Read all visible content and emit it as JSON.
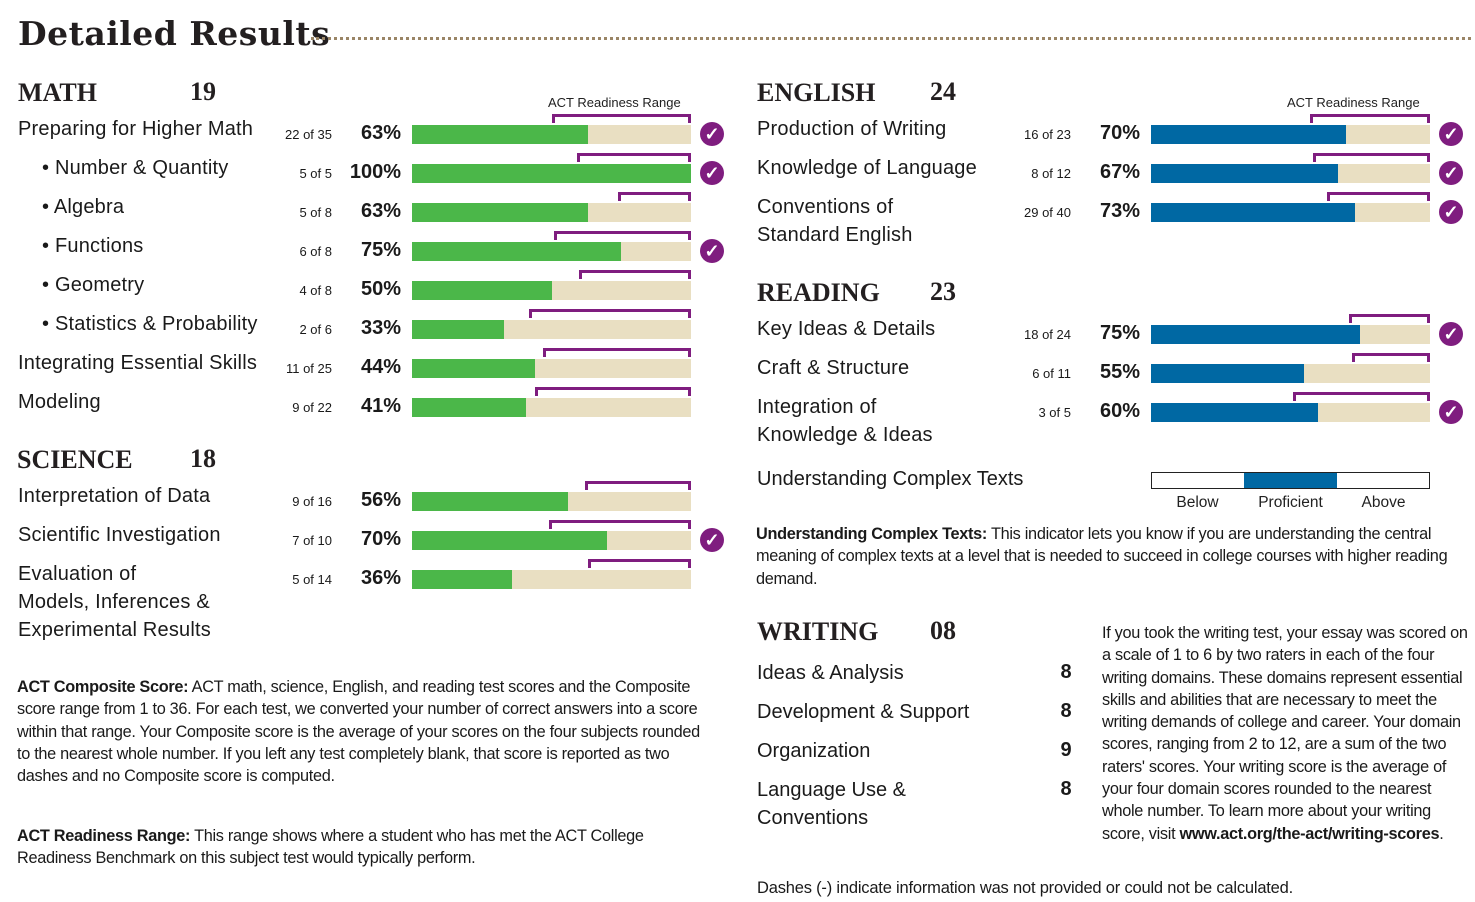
{
  "title": "Detailed Results",
  "readiness_label": "ACT Readiness Range",
  "colors": {
    "math_science_bar": "#4bb749",
    "english_reading_bar": "#0068a3",
    "track": "#e9dfc2",
    "readiness_bracket": "#7f1d7f",
    "check": "#7f1d7f",
    "divider": "#9a8566"
  },
  "math": {
    "name": "MATH",
    "score": "19",
    "rows": [
      {
        "label": "Preparing for Higher Math",
        "count": "22 of 35",
        "percent": "63%",
        "value": 63,
        "readiness_start": 50,
        "met": true,
        "indent": false
      },
      {
        "label": "• Number & Quantity",
        "count": "5 of 5",
        "percent": "100%",
        "value": 100,
        "readiness_start": 59,
        "met": true,
        "indent": true
      },
      {
        "label": "• Algebra",
        "count": "5 of 8",
        "percent": "63%",
        "value": 63,
        "readiness_start": 74,
        "met": false,
        "indent": true
      },
      {
        "label": "• Functions",
        "count": "6 of 8",
        "percent": "75%",
        "value": 75,
        "readiness_start": 51,
        "met": true,
        "indent": true
      },
      {
        "label": "• Geometry",
        "count": "4 of 8",
        "percent": "50%",
        "value": 50,
        "readiness_start": 60,
        "met": false,
        "indent": true
      },
      {
        "label": "• Statistics & Probability",
        "count": "2 of 6",
        "percent": "33%",
        "value": 33,
        "readiness_start": 42,
        "met": false,
        "indent": true
      },
      {
        "label": "Integrating Essential Skills",
        "count": "11 of 25",
        "percent": "44%",
        "value": 44,
        "readiness_start": 47,
        "met": false,
        "indent": false
      },
      {
        "label": "Modeling",
        "count": "9 of 22",
        "percent": "41%",
        "value": 41,
        "readiness_start": 44,
        "met": false,
        "indent": false
      }
    ]
  },
  "science": {
    "name": "SCIENCE",
    "score": "18",
    "rows": [
      {
        "label": "Interpretation of Data",
        "count": "9 of 16",
        "percent": "56%",
        "value": 56,
        "readiness_start": 62,
        "met": false
      },
      {
        "label": "Scientific Investigation",
        "count": "7 of 10",
        "percent": "70%",
        "value": 70,
        "readiness_start": 49,
        "met": true
      },
      {
        "label": "Evaluation of\nModels, Inferences &\nExperimental Results",
        "count": "5 of 14",
        "percent": "36%",
        "value": 36,
        "readiness_start": 63,
        "met": false
      }
    ]
  },
  "english": {
    "name": "ENGLISH",
    "score": "24",
    "rows": [
      {
        "label": "Production of Writing",
        "count": "16 of 23",
        "percent": "70%",
        "value": 70,
        "readiness_start": 57,
        "met": true
      },
      {
        "label": "Knowledge of Language",
        "count": "8 of 12",
        "percent": "67%",
        "value": 67,
        "readiness_start": 58,
        "met": true
      },
      {
        "label": "Conventions of\nStandard English",
        "count": "29 of 40",
        "percent": "73%",
        "value": 73,
        "readiness_start": 63,
        "met": true
      }
    ]
  },
  "reading": {
    "name": "READING",
    "score": "23",
    "rows": [
      {
        "label": "Key Ideas & Details",
        "count": "18 of 24",
        "percent": "75%",
        "value": 75,
        "readiness_start": 71,
        "met": true
      },
      {
        "label": "Craft & Structure",
        "count": "6 of 11",
        "percent": "55%",
        "value": 55,
        "readiness_start": 72,
        "met": false
      },
      {
        "label": "Integration of\nKnowledge & Ideas",
        "count": "3 of 5",
        "percent": "60%",
        "value": 60,
        "readiness_start": 51,
        "met": true
      }
    ],
    "uct": {
      "label": "Understanding Complex Texts",
      "levels": [
        "Below",
        "Proficient",
        "Above"
      ],
      "selected": "Proficient"
    }
  },
  "uct_note": {
    "heading": "Understanding Complex Texts:",
    "text": " This indicator lets you know if you are understanding the central meaning of complex texts at a level that is needed to succeed in college courses with higher reading demand."
  },
  "writing": {
    "name": "WRITING",
    "score": "08",
    "rows": [
      {
        "label": "Ideas & Analysis",
        "score": "8"
      },
      {
        "label": "Development & Support",
        "score": "8"
      },
      {
        "label": "Organization",
        "score": "9"
      },
      {
        "label": "Language Use &\nConventions",
        "score": "8"
      }
    ],
    "note": "If you took the writing test, your essay was scored on a scale of 1 to 6 by two raters in each of the four writing domains. These domains represent essential skills and abilities that are necessary to meet the writing demands of college and career. Your domain scores, ranging from 2 to 12, are a sum of the two raters' scores. Your writing score is the average of your four domain scores rounded to the nearest whole number. To learn more about your writing score, visit ",
    "link": "www.act.org/the-act/writing-scores",
    "note_end": "."
  },
  "composite_note": {
    "heading": "ACT Composite Score:",
    "text": " ACT math, science, English, and reading test scores and the Composite score range from 1 to 36. For each test, we converted your number of correct answers into a score within that range. Your Composite score is the average of your scores on the four subjects rounded to the nearest whole number. If you left any test completely blank, that score is reported as two dashes and no Composite score is computed."
  },
  "readiness_note": {
    "heading": "ACT Readiness Range:",
    "text": " This range shows where a student who has met the ACT College Readiness Benchmark on this subject test would typically perform."
  },
  "footnote": "Dashes (-) indicate information was not provided or could not be calculated."
}
